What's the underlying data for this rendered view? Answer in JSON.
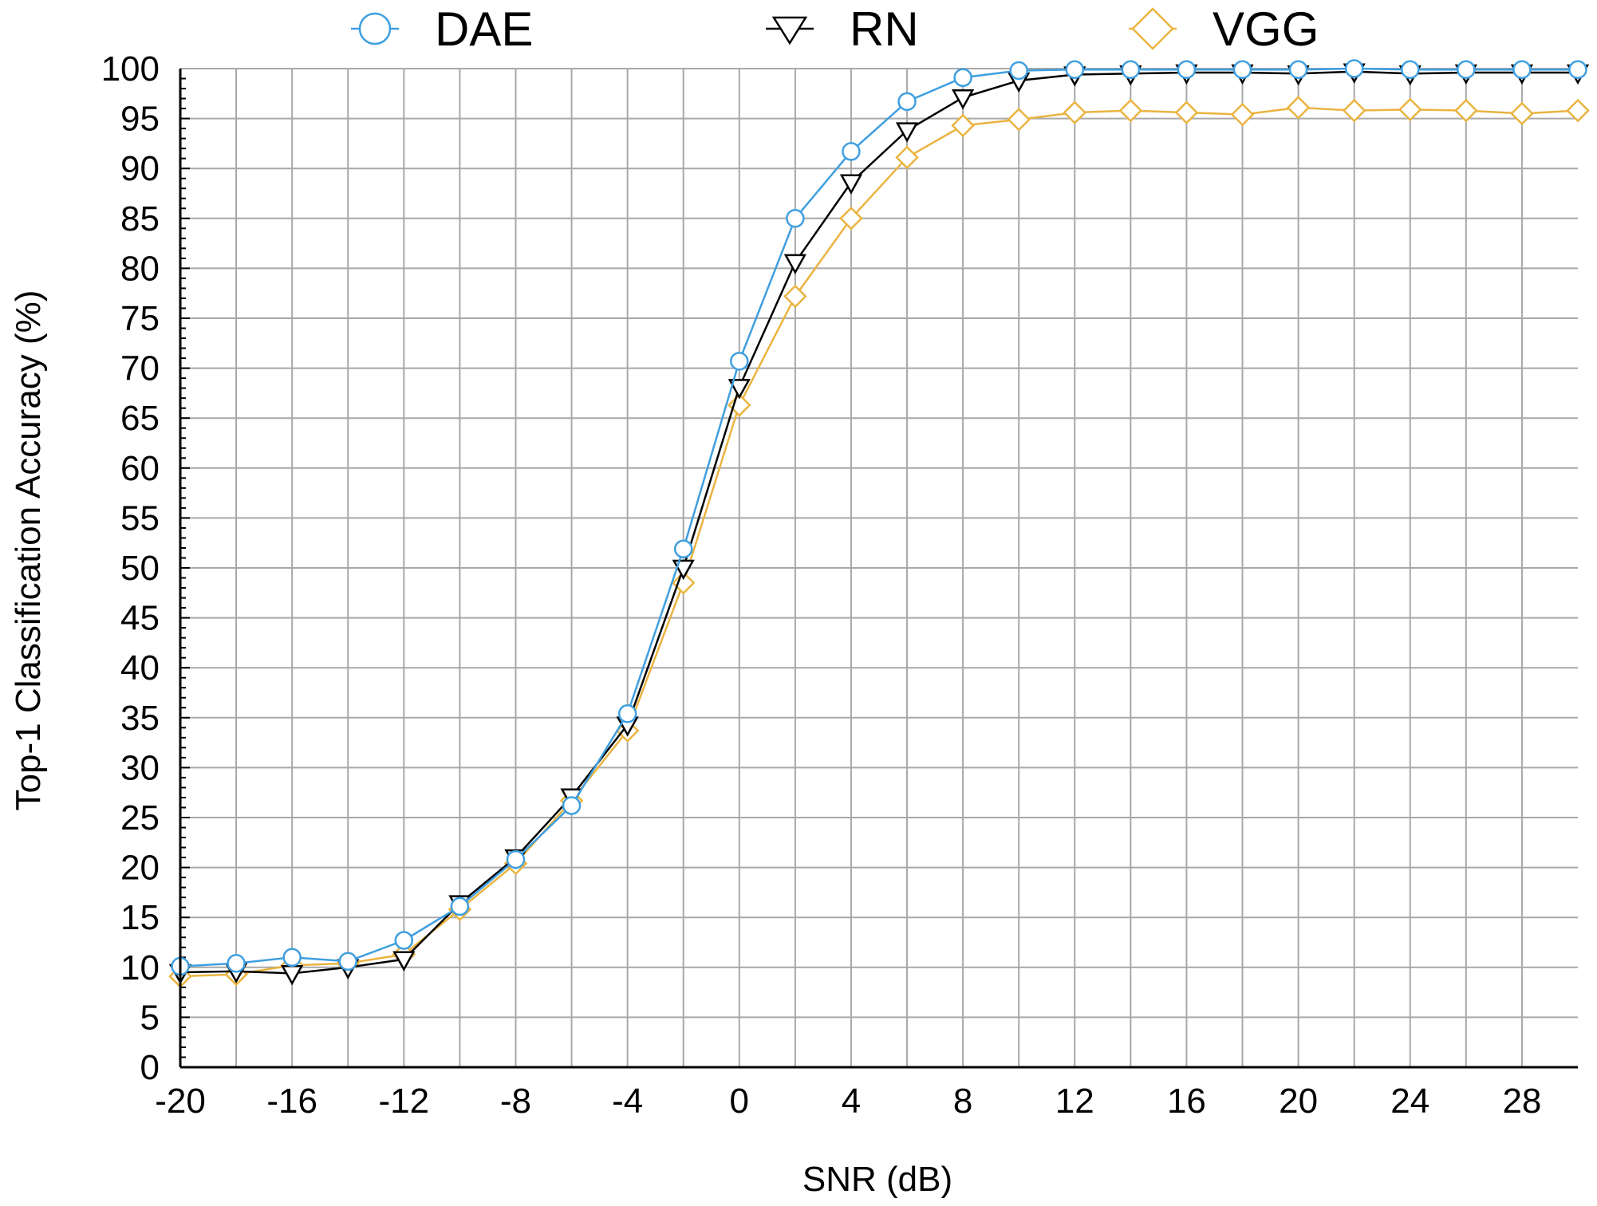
{
  "chart_data": {
    "type": "line",
    "xlabel": "SNR (dB)",
    "ylabel": "Top-1 Classification Accuracy (%)",
    "xlim": [
      -20,
      30
    ],
    "ylim": [
      0,
      100
    ],
    "x_tick_labels": [
      "-20",
      "-16",
      "-12",
      "-8",
      "-4",
      "0",
      "4",
      "8",
      "12",
      "16",
      "20",
      "24",
      "28"
    ],
    "y_tick_labels": [
      "0",
      "5",
      "10",
      "15",
      "20",
      "25",
      "30",
      "35",
      "40",
      "45",
      "50",
      "55",
      "60",
      "65",
      "70",
      "75",
      "80",
      "85",
      "90",
      "95",
      "100"
    ],
    "grid": true,
    "legend_position": "top",
    "x": [
      -20,
      -18,
      -16,
      -14,
      -12,
      -10,
      -8,
      -6,
      -4,
      -2,
      0,
      2,
      4,
      6,
      8,
      10,
      12,
      14,
      16,
      18,
      20,
      22,
      24,
      26,
      28,
      30
    ],
    "series": [
      {
        "name": "DAE",
        "marker": "circle",
        "color": "#3f9fe0",
        "values": [
          10.1,
          10.4,
          11.0,
          10.6,
          12.7,
          16.1,
          20.8,
          26.2,
          35.4,
          51.9,
          70.7,
          85.0,
          91.7,
          96.7,
          99.1,
          99.8,
          99.9,
          99.9,
          99.9,
          99.9,
          99.9,
          100.0,
          99.9,
          99.9,
          99.9,
          99.9
        ]
      },
      {
        "name": "RN",
        "marker": "triangle-down",
        "color": "#000000",
        "values": [
          9.5,
          9.6,
          9.4,
          10.0,
          10.8,
          16.4,
          21.0,
          27.1,
          34.3,
          50.0,
          68.1,
          80.6,
          88.6,
          93.8,
          97.1,
          98.8,
          99.4,
          99.5,
          99.6,
          99.6,
          99.5,
          99.7,
          99.5,
          99.6,
          99.6,
          99.6
        ]
      },
      {
        "name": "VGG",
        "marker": "diamond",
        "color": "#eab441",
        "values": [
          9.1,
          9.3,
          10.2,
          10.4,
          11.3,
          15.8,
          20.4,
          26.7,
          33.7,
          48.5,
          66.3,
          77.2,
          85.0,
          91.1,
          94.3,
          94.9,
          95.6,
          95.8,
          95.6,
          95.4,
          96.1,
          95.8,
          95.9,
          95.8,
          95.5,
          95.8
        ]
      }
    ]
  }
}
